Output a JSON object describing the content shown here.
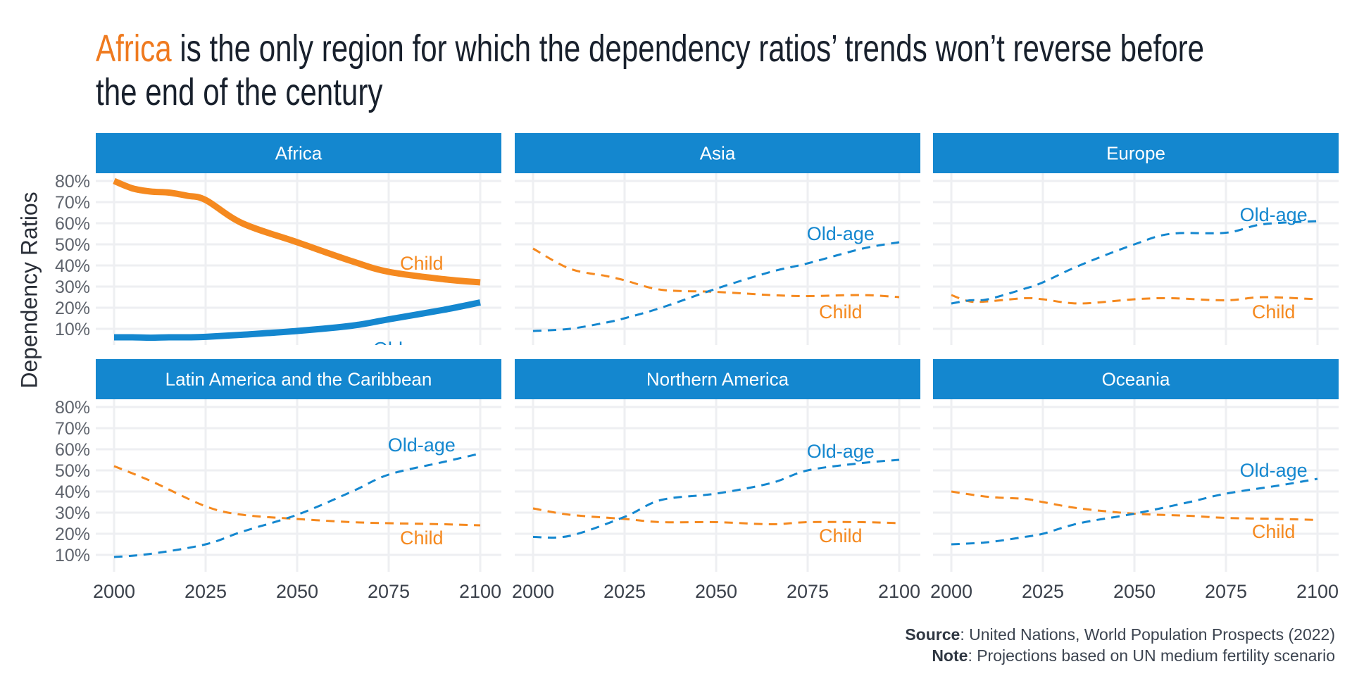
{
  "title": {
    "accent": "Africa",
    "rest_line1": " is the only region for which the dependency ratios’ trends won’t reverse before",
    "line2": "the end of the century"
  },
  "colors": {
    "child": "#f5891f",
    "old_age": "#1487cf",
    "strip_bg": "#1487cf",
    "strip_text": "#ffffff",
    "grid": "#eeeff2",
    "accent": "#ef7a1f",
    "title": "#18202c"
  },
  "caption": {
    "source_label": "Source",
    "source_text": ": United Nations, World Population Prospects (2022)",
    "note_label": "Note",
    "note_text": ": Projections based on UN medium fertility scenario"
  },
  "chart_data": {
    "type": "line",
    "layout": "facet 2x3",
    "ylabel": "Dependency Ratios",
    "xlabel": "",
    "x_ticks": [
      2000,
      2025,
      2050,
      2075,
      2100
    ],
    "y_ticks": [
      "10%",
      "20%",
      "30%",
      "40%",
      "50%",
      "60%",
      "70%",
      "80%"
    ],
    "xlim": [
      2000,
      2100
    ],
    "ylim": [
      0,
      82
    ],
    "grid": true,
    "legend": "none (direct labels)",
    "series_labels": {
      "child": "Child",
      "old_age": "Old-age"
    },
    "panels": [
      {
        "name": "Africa",
        "highlight": true,
        "x": [
          2000,
          2005,
          2010,
          2015,
          2020,
          2025,
          2035,
          2050,
          2065,
          2075,
          2090,
          2100
        ],
        "child": [
          80,
          76.5,
          75,
          74.5,
          73,
          71,
          60,
          51,
          42,
          37,
          33.5,
          32
        ],
        "old_age": [
          6,
          6,
          5.8,
          6,
          6,
          6.2,
          7.2,
          9,
          11.5,
          14.5,
          19,
          22.5
        ],
        "child_label_at": [
          2084,
          41
        ],
        "old_age_label_at": [
          2080,
          0.5
        ]
      },
      {
        "name": "Asia",
        "highlight": false,
        "x": [
          2000,
          2010,
          2020,
          2025,
          2035,
          2050,
          2065,
          2075,
          2090,
          2100
        ],
        "child": [
          48,
          38.5,
          35,
          33,
          28.5,
          27.5,
          26,
          25.5,
          26,
          25
        ],
        "old_age": [
          9,
          10,
          13,
          15,
          20,
          29,
          37,
          41,
          48,
          51
        ],
        "child_label_at": [
          2084,
          18
        ],
        "old_age_label_at": [
          2084,
          55
        ]
      },
      {
        "name": "Europe",
        "highlight": false,
        "x": [
          2000,
          2005,
          2010,
          2020,
          2025,
          2035,
          2050,
          2060,
          2075,
          2085,
          2100
        ],
        "child": [
          26,
          23,
          23,
          24.5,
          24,
          22,
          24,
          24.5,
          23.5,
          25,
          24
        ],
        "old_age": [
          22,
          23.5,
          24,
          29,
          32,
          40,
          50,
          55,
          55.5,
          59.5,
          61
        ],
        "child_label_at": [
          2088,
          18
        ],
        "old_age_label_at": [
          2088,
          64
        ]
      },
      {
        "name": "Latin America and the Caribbean",
        "highlight": false,
        "x": [
          2000,
          2010,
          2025,
          2035,
          2050,
          2065,
          2075,
          2090,
          2100
        ],
        "child": [
          52,
          45,
          33,
          29,
          27,
          25.5,
          25,
          24.5,
          24
        ],
        "old_age": [
          9,
          10.5,
          15,
          21,
          29,
          40,
          48,
          54,
          58
        ],
        "child_label_at": [
          2084,
          18
        ],
        "old_age_label_at": [
          2084,
          62
        ]
      },
      {
        "name": "Northern America",
        "highlight": false,
        "x": [
          2000,
          2010,
          2025,
          2035,
          2050,
          2065,
          2075,
          2090,
          2100
        ],
        "child": [
          32,
          29,
          27,
          25.5,
          25.5,
          24.5,
          25.5,
          25.5,
          25
        ],
        "old_age": [
          18.5,
          19,
          28,
          36,
          39,
          44,
          50,
          53.5,
          55
        ],
        "child_label_at": [
          2084,
          19
        ],
        "old_age_label_at": [
          2084,
          59
        ]
      },
      {
        "name": "Oceania",
        "highlight": false,
        "x": [
          2000,
          2010,
          2020,
          2025,
          2035,
          2050,
          2065,
          2075,
          2090,
          2100
        ],
        "child": [
          40,
          37.5,
          36.5,
          35,
          32,
          29.5,
          28.5,
          27.5,
          27,
          26.5
        ],
        "old_age": [
          15,
          16,
          18.5,
          20,
          25,
          29.5,
          35,
          39,
          43,
          46
        ],
        "child_label_at": [
          2088,
          21
        ],
        "old_age_label_at": [
          2088,
          50
        ]
      }
    ]
  }
}
